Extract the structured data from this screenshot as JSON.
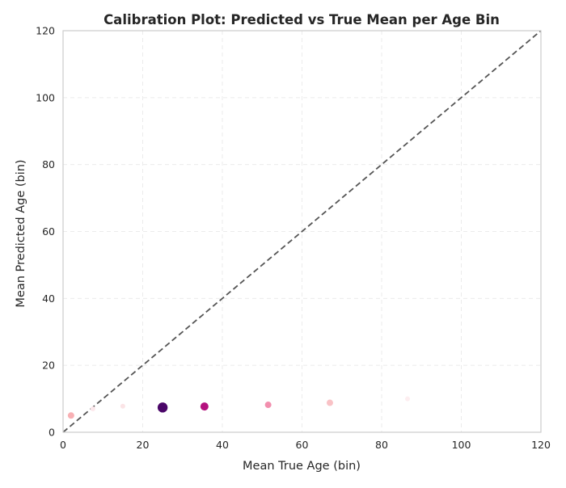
{
  "chart_data": {
    "type": "scatter",
    "title": "Calibration Plot: Predicted vs True Mean per Age Bin",
    "xlabel": "Mean True Age (bin)",
    "ylabel": "Mean Predicted Age (bin)",
    "xlim": [
      0,
      120
    ],
    "ylim": [
      0,
      120
    ],
    "x_ticks": [
      0,
      20,
      40,
      60,
      80,
      100,
      120
    ],
    "y_ticks": [
      0,
      20,
      40,
      60,
      80,
      100,
      120
    ],
    "grid": true,
    "grid_style": "dashed",
    "reference_line": {
      "type": "identity",
      "style": "dashed",
      "color": "#555555"
    },
    "points": [
      {
        "x": 2,
        "y": 5.0,
        "size": "small",
        "color": "#f8b0b4"
      },
      {
        "x": 7.5,
        "y": 7.0,
        "size": "tiny",
        "color": "#fde8ec"
      },
      {
        "x": 15,
        "y": 7.8,
        "size": "tiny",
        "color": "#fbe4e6"
      },
      {
        "x": 25,
        "y": 7.4,
        "size": "large",
        "color": "#4a0668"
      },
      {
        "x": 35.5,
        "y": 7.7,
        "size": "medium",
        "color": "#b4117e"
      },
      {
        "x": 51.5,
        "y": 8.2,
        "size": "small",
        "color": "#f28fae"
      },
      {
        "x": 67,
        "y": 8.8,
        "size": "small",
        "color": "#f9c2c6"
      },
      {
        "x": 86.5,
        "y": 10.0,
        "size": "tiny",
        "color": "#fdeef0"
      }
    ]
  }
}
